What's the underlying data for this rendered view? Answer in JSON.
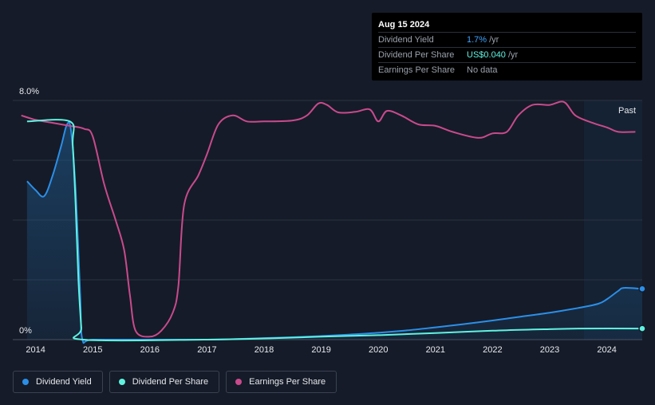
{
  "tooltip": {
    "date": "Aug 15 2024",
    "rows": [
      {
        "label": "Dividend Yield",
        "value": "1.7%",
        "unit": "/yr"
      },
      {
        "label": "Dividend Per Share",
        "value": "US$0.040",
        "unit": "/yr"
      },
      {
        "label": "Earnings Per Share",
        "value": "No data",
        "unit": ""
      }
    ]
  },
  "legend": [
    {
      "label": "Dividend Yield",
      "color": "#2b8fe8"
    },
    {
      "label": "Dividend Per Share",
      "color": "#5ff2e0"
    },
    {
      "label": "Earnings Per Share",
      "color": "#c94a8c"
    }
  ],
  "chart_data": {
    "type": "line",
    "y_axis_labels": [
      "8.0%",
      "0%"
    ],
    "ylim": [
      0,
      8
    ],
    "xlim": [
      2013.6,
      2024.62
    ],
    "x_ticks": [
      2014,
      2015,
      2016,
      2017,
      2018,
      2019,
      2020,
      2021,
      2022,
      2023,
      2024
    ],
    "past_label": "Past",
    "past_region_start": 2023.6,
    "grid": true,
    "legend_position": "bottom-left",
    "series": [
      {
        "name": "Dividend Yield",
        "color": "#2b8fe8",
        "area": true,
        "end_marker": true,
        "points": [
          [
            2013.85,
            5.3
          ],
          [
            2014.0,
            5.0
          ],
          [
            2014.15,
            4.8
          ],
          [
            2014.3,
            5.5
          ],
          [
            2014.45,
            6.5
          ],
          [
            2014.55,
            7.2
          ],
          [
            2014.62,
            7.0
          ],
          [
            2014.7,
            5.0
          ],
          [
            2014.78,
            1.5
          ],
          [
            2014.82,
            0.0
          ],
          [
            2015,
            0
          ],
          [
            2016,
            0
          ],
          [
            2017,
            0
          ],
          [
            2017.5,
            0.02
          ],
          [
            2018,
            0.05
          ],
          [
            2018.5,
            0.08
          ],
          [
            2019,
            0.12
          ],
          [
            2019.5,
            0.17
          ],
          [
            2020,
            0.23
          ],
          [
            2020.5,
            0.31
          ],
          [
            2021,
            0.41
          ],
          [
            2021.5,
            0.52
          ],
          [
            2022,
            0.64
          ],
          [
            2022.5,
            0.77
          ],
          [
            2023,
            0.9
          ],
          [
            2023.5,
            1.06
          ],
          [
            2023.85,
            1.2
          ],
          [
            2024.0,
            1.35
          ],
          [
            2024.2,
            1.63
          ],
          [
            2024.3,
            1.73
          ],
          [
            2024.62,
            1.7
          ]
        ]
      },
      {
        "name": "Dividend Per Share",
        "color": "#5ff2e0",
        "area": false,
        "end_marker": true,
        "points": [
          [
            2013.85,
            7.3
          ],
          [
            2014.6,
            7.3
          ],
          [
            2014.65,
            6.5
          ],
          [
            2014.7,
            4.5
          ],
          [
            2014.75,
            2.0
          ],
          [
            2014.8,
            0.4
          ],
          [
            2014.83,
            0.0
          ],
          [
            2017,
            0
          ],
          [
            2018,
            0.04
          ],
          [
            2019,
            0.1
          ],
          [
            2020,
            0.15
          ],
          [
            2021,
            0.22
          ],
          [
            2022,
            0.3
          ],
          [
            2023,
            0.35
          ],
          [
            2023.5,
            0.37
          ],
          [
            2024.62,
            0.37
          ]
        ]
      },
      {
        "name": "Earnings Per Share",
        "color": "#c94a8c",
        "area": false,
        "end_marker": false,
        "points": [
          [
            2013.75,
            7.5
          ],
          [
            2014.0,
            7.35
          ],
          [
            2014.3,
            7.25
          ],
          [
            2014.6,
            7.15
          ],
          [
            2014.85,
            7.05
          ],
          [
            2015.0,
            6.8
          ],
          [
            2015.2,
            5.2
          ],
          [
            2015.4,
            4.0
          ],
          [
            2015.55,
            3.0
          ],
          [
            2015.65,
            1.5
          ],
          [
            2015.75,
            0.3
          ],
          [
            2016.0,
            0.1
          ],
          [
            2016.2,
            0.3
          ],
          [
            2016.4,
            0.9
          ],
          [
            2016.5,
            1.8
          ],
          [
            2016.6,
            4.5
          ],
          [
            2016.85,
            5.5
          ],
          [
            2017.0,
            6.2
          ],
          [
            2017.2,
            7.2
          ],
          [
            2017.45,
            7.5
          ],
          [
            2017.7,
            7.3
          ],
          [
            2018.0,
            7.3
          ],
          [
            2018.5,
            7.33
          ],
          [
            2018.75,
            7.5
          ],
          [
            2018.95,
            7.9
          ],
          [
            2019.1,
            7.85
          ],
          [
            2019.3,
            7.6
          ],
          [
            2019.6,
            7.62
          ],
          [
            2019.85,
            7.7
          ],
          [
            2020.0,
            7.3
          ],
          [
            2020.15,
            7.65
          ],
          [
            2020.4,
            7.5
          ],
          [
            2020.7,
            7.2
          ],
          [
            2021.0,
            7.15
          ],
          [
            2021.3,
            6.95
          ],
          [
            2021.75,
            6.75
          ],
          [
            2022.0,
            6.9
          ],
          [
            2022.25,
            6.95
          ],
          [
            2022.45,
            7.5
          ],
          [
            2022.7,
            7.85
          ],
          [
            2023.0,
            7.85
          ],
          [
            2023.25,
            7.95
          ],
          [
            2023.45,
            7.5
          ],
          [
            2023.75,
            7.25
          ],
          [
            2024.0,
            7.1
          ],
          [
            2024.2,
            6.95
          ],
          [
            2024.5,
            6.95
          ]
        ]
      }
    ]
  }
}
